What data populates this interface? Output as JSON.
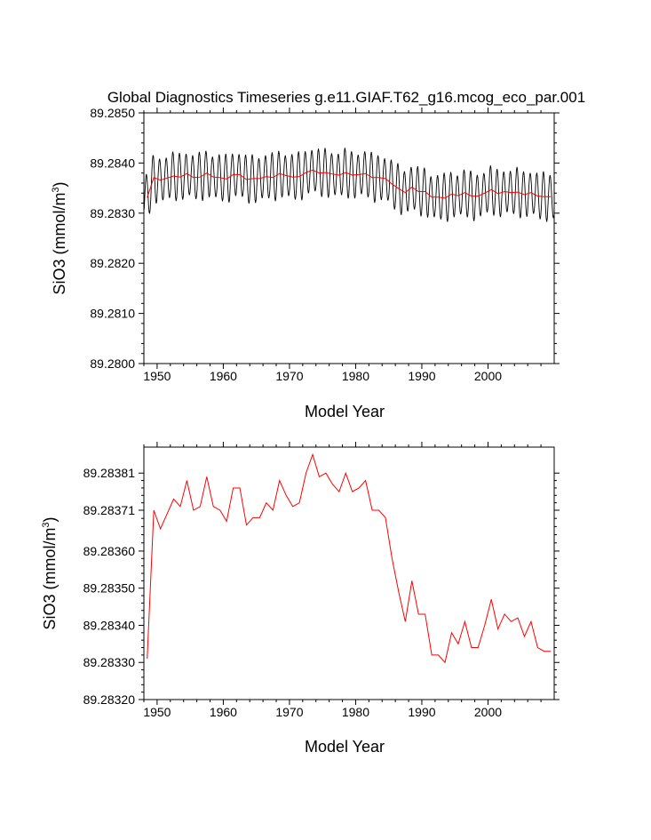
{
  "title": "Global Diagnostics Timeseries g.e11.GIAF.T62_g16.mcog_eco_par.001",
  "colors": {
    "monthly": "#000000",
    "annual": "#ff0000",
    "axis": "#000000"
  },
  "chart_data": [
    {
      "type": "line",
      "panel": "top",
      "xlabel": "Model Year",
      "ylabel_main": "SiO3 (mmol/m",
      "ylabel_sup": "3",
      "ylabel_close": ")",
      "xlim": [
        1948,
        2010
      ],
      "ylim": [
        89.28,
        89.285
      ],
      "xticks": [
        1950,
        1960,
        1970,
        1980,
        1990,
        2000
      ],
      "xtick_labels": [
        "1950",
        "1960",
        "1970",
        "1980",
        "1990",
        "2000"
      ],
      "yticks": [
        89.28,
        89.281,
        89.282,
        89.283,
        89.284,
        89.285
      ],
      "ytick_labels": [
        "89.2800",
        "89.2810",
        "89.2820",
        "89.2830",
        "89.2840",
        "89.2850"
      ],
      "series": [
        {
          "name": "monthly",
          "kind": "seasonal",
          "start_year": 1948,
          "end_year": 2010,
          "base_series": "annual",
          "amplitude": 0.00045
        },
        {
          "name": "annual",
          "kind": "annual_mean_of_panel_2"
        }
      ]
    },
    {
      "type": "line",
      "panel": "bottom",
      "xlabel": "Model Year",
      "ylabel_main": "SiO3 (mmol/m",
      "ylabel_sup": "3",
      "ylabel_close": ")",
      "xlim": [
        1948,
        2010
      ],
      "ylim": [
        89.2832,
        89.28388
      ],
      "xticks": [
        1950,
        1960,
        1970,
        1980,
        1990,
        2000
      ],
      "xtick_labels": [
        "1950",
        "1960",
        "1970",
        "1980",
        "1990",
        "2000"
      ],
      "yticks": [
        89.2832,
        89.2833,
        89.2834,
        89.2835,
        89.2836,
        89.28371,
        89.28381
      ],
      "ytick_labels": [
        "89.28320",
        "89.28330",
        "89.28340",
        "89.28350",
        "89.28360",
        "89.28371",
        "89.28381"
      ],
      "series": [
        {
          "name": "annual",
          "x": [
            1948.5,
            1949.5,
            1950.5,
            1951.5,
            1952.5,
            1953.5,
            1954.5,
            1955.5,
            1956.5,
            1957.5,
            1958.5,
            1959.5,
            1960.5,
            1961.5,
            1962.5,
            1963.5,
            1964.5,
            1965.5,
            1966.5,
            1967.5,
            1968.5,
            1969.5,
            1970.5,
            1971.5,
            1972.5,
            1973.5,
            1974.5,
            1975.5,
            1976.5,
            1977.5,
            1978.5,
            1979.5,
            1980.5,
            1981.5,
            1982.5,
            1983.5,
            1984.5,
            1985.5,
            1986.5,
            1987.5,
            1988.5,
            1989.5,
            1990.5,
            1991.5,
            1992.5,
            1993.5,
            1994.5,
            1995.5,
            1996.5,
            1997.5,
            1998.5,
            1999.5,
            2000.5,
            2001.5,
            2002.5,
            2003.5,
            2004.5,
            2005.5,
            2006.5,
            2007.5,
            2008.5,
            2009.5
          ],
          "values": [
            89.28331,
            89.28371,
            89.28366,
            89.2837,
            89.28374,
            89.28372,
            89.28379,
            89.28371,
            89.28372,
            89.2838,
            89.28372,
            89.28371,
            89.28368,
            89.28377,
            89.28377,
            89.28367,
            89.28369,
            89.28369,
            89.28373,
            89.28371,
            89.28379,
            89.28375,
            89.28372,
            89.28373,
            89.28381,
            89.28386,
            89.2838,
            89.28381,
            89.28378,
            89.28376,
            89.28381,
            89.28376,
            89.28377,
            89.28379,
            89.28371,
            89.28371,
            89.28369,
            89.28358,
            89.28349,
            89.28341,
            89.28352,
            89.28343,
            89.28343,
            89.28332,
            89.28332,
            89.2833,
            89.28338,
            89.28335,
            89.28341,
            89.28334,
            89.28334,
            89.2834,
            89.28347,
            89.28339,
            89.28343,
            89.28341,
            89.28342,
            89.28337,
            89.28341,
            89.28334,
            89.28333,
            89.28333
          ]
        }
      ]
    }
  ]
}
